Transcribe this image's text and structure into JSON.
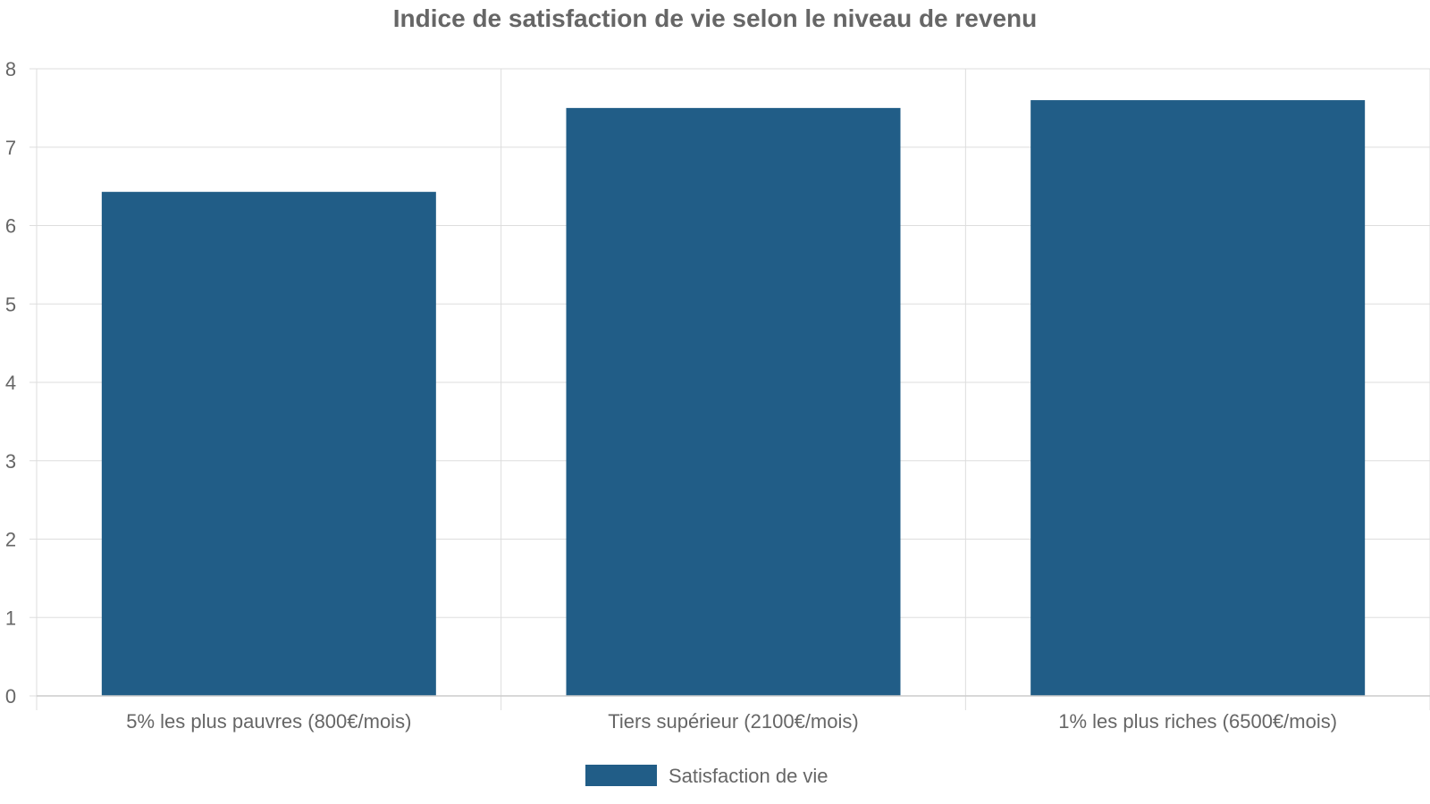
{
  "chart_data": {
    "type": "bar",
    "title": "Indice de satisfaction de vie selon le niveau de revenu",
    "categories": [
      "5% les plus pauvres (800€/mois)",
      "Tiers supérieur (2100€/mois)",
      "1% les plus riches (6500€/mois)"
    ],
    "series": [
      {
        "name": "Satisfaction de vie",
        "values": [
          6.43,
          7.5,
          7.6
        ],
        "color": "#215d87"
      }
    ],
    "ylim": [
      0,
      8
    ],
    "yticks": [
      "0",
      "1",
      "2",
      "3",
      "4",
      "5",
      "6",
      "7",
      "8"
    ],
    "xlabel": "",
    "ylabel": "",
    "grid": true,
    "legend": "bottom-center"
  }
}
